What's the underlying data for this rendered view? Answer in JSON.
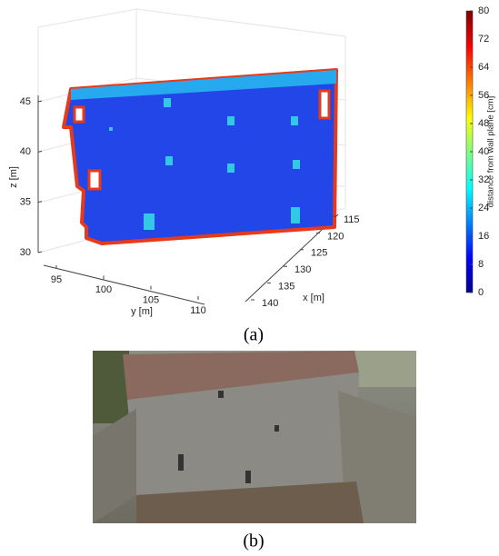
{
  "figure": {
    "panel_a": {
      "z_label": "z [m]",
      "y_label": "y [m]",
      "x_label": "x [m]",
      "z_ticks": [
        30,
        35,
        40,
        45
      ],
      "y_ticks": [
        95,
        100,
        105,
        110
      ],
      "x_ticks": [
        115,
        120,
        125,
        130,
        135,
        140
      ],
      "colorbar_label": "distance from wall plane [cm]",
      "colorbar_ticks": [
        0,
        8,
        16,
        24,
        32,
        40,
        48,
        56,
        64,
        72,
        80
      ],
      "caption": "(a)"
    },
    "panel_b": {
      "caption": "(b)"
    }
  }
}
